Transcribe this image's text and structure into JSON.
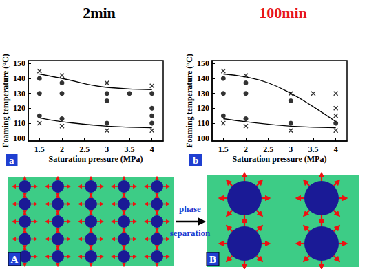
{
  "chart_data": [
    {
      "type": "scatter",
      "title": "2min",
      "annotations": [
        "a"
      ],
      "x_label": "Saturation pressure (MPa)",
      "y_label": "Foaming temperature (°C)",
      "xlim": [
        1.25,
        4.25
      ],
      "xticks": [
        1.5,
        2,
        2.5,
        3,
        3.5,
        4
      ],
      "ylim": [
        98,
        152
      ],
      "yticks": [
        100,
        110,
        120,
        130,
        140,
        150
      ],
      "grid": false,
      "series": [
        {
          "type": "scatter",
          "marker": "x",
          "color": "#000000",
          "values": [
            [
              1.5,
              145
            ],
            [
              2,
              142
            ],
            [
              3,
              137
            ],
            [
              4,
              135
            ],
            [
              1.5,
              110
            ],
            [
              2,
              108
            ],
            [
              3,
              105
            ],
            [
              4,
              105
            ]
          ]
        },
        {
          "type": "scatter",
          "marker": "circle",
          "color": "#000000",
          "values": [
            [
              1.5,
              140
            ],
            [
              1.5,
              130
            ],
            [
              1.5,
              115
            ],
            [
              2,
              137
            ],
            [
              2,
              130
            ],
            [
              2,
              113
            ],
            [
              3,
              130
            ],
            [
              3,
              125
            ],
            [
              3,
              110
            ],
            [
              3.5,
              130
            ],
            [
              4,
              130
            ],
            [
              4,
              120
            ],
            [
              4,
              115
            ],
            [
              4,
              110
            ]
          ]
        },
        {
          "type": "line",
          "line_style": "solid",
          "color": "#000000",
          "values": [
            [
              1.5,
              143
            ],
            [
              2,
              140
            ],
            [
              3,
              134
            ],
            [
              4,
              132.5
            ]
          ]
        },
        {
          "type": "line",
          "line_style": "solid",
          "color": "#000000",
          "values": [
            [
              1.5,
              113.5
            ],
            [
              2,
              111
            ],
            [
              3,
              108
            ],
            [
              4,
              107
            ]
          ]
        }
      ]
    },
    {
      "type": "scatter",
      "title": "100min",
      "annotations": [
        "b"
      ],
      "x_label": "Saturation pressure (MPa)",
      "y_label": "Foaming temperature (°C)",
      "xlim": [
        1.25,
        4.25
      ],
      "xticks": [
        1.5,
        2,
        2.5,
        3,
        3.5,
        4
      ],
      "ylim": [
        98,
        152
      ],
      "yticks": [
        100,
        110,
        120,
        130,
        140,
        150
      ],
      "grid": false,
      "series": [
        {
          "type": "scatter",
          "marker": "x",
          "color": "#000000",
          "values": [
            [
              1.5,
              145
            ],
            [
              2,
              142
            ],
            [
              3,
              130
            ],
            [
              3.5,
              130
            ],
            [
              4,
              130
            ],
            [
              4,
              120
            ],
            [
              4,
              115
            ],
            [
              1.5,
              110
            ],
            [
              2,
              108
            ],
            [
              3,
              105
            ],
            [
              4,
              105
            ]
          ]
        },
        {
          "type": "scatter",
          "marker": "circle",
          "color": "#000000",
          "values": [
            [
              1.5,
              140
            ],
            [
              1.5,
              130
            ],
            [
              1.5,
              115
            ],
            [
              2,
              137
            ],
            [
              2,
              130
            ],
            [
              2,
              113
            ],
            [
              3,
              125
            ],
            [
              3,
              110
            ],
            [
              4,
              110
            ]
          ]
        },
        {
          "type": "line",
          "line_style": "solid",
          "color": "#000000",
          "values": [
            [
              1.5,
              143
            ],
            [
              2,
              141
            ],
            [
              2.5,
              137
            ],
            [
              3,
              130
            ],
            [
              3.5,
              121
            ],
            [
              4,
              111
            ]
          ]
        },
        {
          "type": "line",
          "line_style": "solid",
          "color": "#000000",
          "values": [
            [
              1.5,
              113
            ],
            [
              2,
              111
            ],
            [
              3,
              108
            ],
            [
              4,
              107
            ]
          ]
        }
      ]
    }
  ],
  "diagram": {
    "arrow_label": [
      "phase",
      "separation"
    ],
    "panels": [
      {
        "label": "A"
      },
      {
        "label": "B"
      }
    ]
  }
}
